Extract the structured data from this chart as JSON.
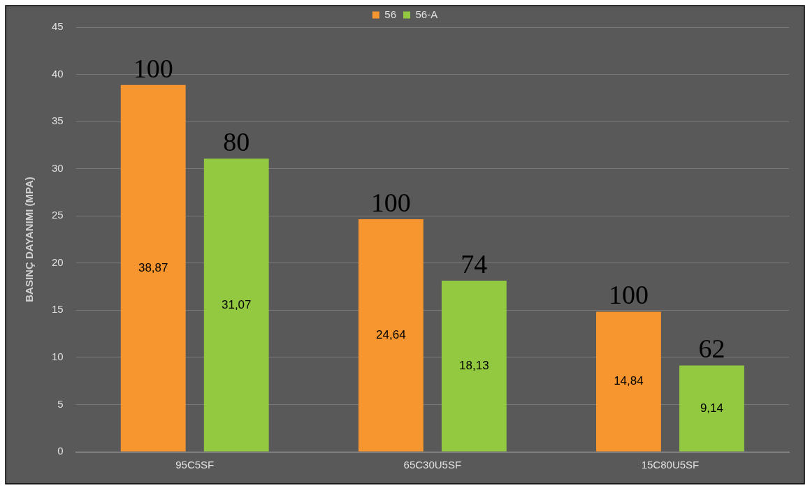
{
  "chart_data": {
    "type": "bar",
    "ylabel": "BASINÇ DAYANIMI (MPA)",
    "categories": [
      "95C5SF",
      "65C30U5SF",
      "15C80U5SF"
    ],
    "series": [
      {
        "name": "56",
        "color": "#f7962f",
        "values": [
          38.87,
          24.64,
          14.84
        ],
        "value_labels": [
          "38,87",
          "24,64",
          "14,84"
        ]
      },
      {
        "name": "56-A",
        "color": "#92c940",
        "values": [
          31.07,
          18.13,
          9.14
        ],
        "value_labels": [
          "31,07",
          "18,13",
          "9,14"
        ]
      }
    ],
    "ylim": [
      0,
      45
    ],
    "yticks": [
      0,
      5,
      10,
      15,
      20,
      25,
      30,
      35,
      40,
      45
    ],
    "grid": "y",
    "legend": "top",
    "annotations": [
      "100",
      "80",
      "100",
      "74",
      "100",
      "62"
    ]
  }
}
